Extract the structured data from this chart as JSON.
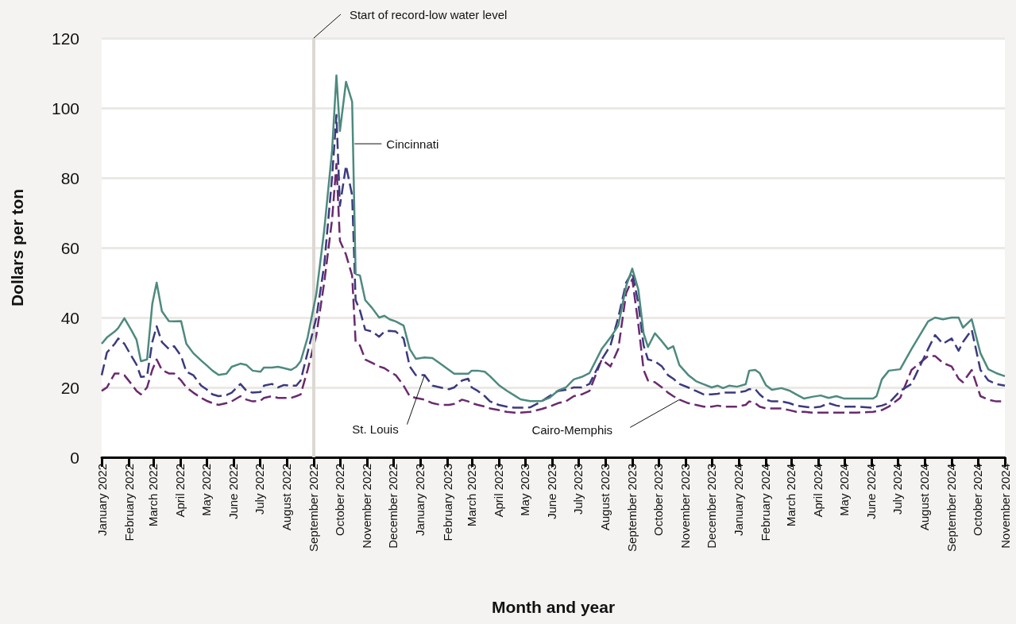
{
  "chart_data": {
    "type": "line",
    "xlabel": "Month and year",
    "ylabel": "Dollars per ton",
    "xlim": [
      "2022-01-01",
      "2024-11-01"
    ],
    "ylim": [
      0,
      120
    ],
    "yticks": [
      0,
      20,
      40,
      60,
      80,
      100,
      120
    ],
    "xticks": [
      {
        "value": "2022-01-01",
        "label": "January 2022"
      },
      {
        "value": "2022-02-01",
        "label": "February 2022"
      },
      {
        "value": "2022-03-01",
        "label": "March 2022"
      },
      {
        "value": "2022-04-01",
        "label": "April 2022"
      },
      {
        "value": "2022-05-01",
        "label": "May 2022"
      },
      {
        "value": "2022-06-01",
        "label": "June 2022"
      },
      {
        "value": "2022-07-01",
        "label": "July 2022"
      },
      {
        "value": "2022-08-01",
        "label": "August 2022"
      },
      {
        "value": "2022-09-01",
        "label": "September 2022"
      },
      {
        "value": "2022-10-01",
        "label": "October 2022"
      },
      {
        "value": "2022-11-01",
        "label": "November 2022"
      },
      {
        "value": "2022-12-01",
        "label": "December 2022"
      },
      {
        "value": "2023-01-01",
        "label": "January 2023"
      },
      {
        "value": "2023-02-01",
        "label": "February 2023"
      },
      {
        "value": "2023-03-01",
        "label": "March 2023"
      },
      {
        "value": "2023-04-01",
        "label": "April 2023"
      },
      {
        "value": "2023-05-01",
        "label": "May 2023"
      },
      {
        "value": "2023-06-01",
        "label": "June 2023"
      },
      {
        "value": "2023-07-01",
        "label": "July 2023"
      },
      {
        "value": "2023-08-01",
        "label": "August 2023"
      },
      {
        "value": "2023-09-01",
        "label": "September 2023"
      },
      {
        "value": "2023-10-01",
        "label": "October 2023"
      },
      {
        "value": "2023-11-01",
        "label": "November 2023"
      },
      {
        "value": "2023-12-01",
        "label": "December 2023"
      },
      {
        "value": "2024-01-01",
        "label": "January 2024"
      },
      {
        "value": "2024-02-01",
        "label": "February 2024"
      },
      {
        "value": "2024-03-01",
        "label": "March 2024"
      },
      {
        "value": "2024-04-01",
        "label": "April 2024"
      },
      {
        "value": "2024-05-01",
        "label": "May 2024"
      },
      {
        "value": "2024-06-01",
        "label": "June 2024"
      },
      {
        "value": "2024-07-01",
        "label": "July 2024"
      },
      {
        "value": "2024-08-01",
        "label": "August 2024"
      },
      {
        "value": "2024-09-01",
        "label": "September 2024"
      },
      {
        "value": "2024-10-01",
        "label": "October 2024"
      },
      {
        "value": "2024-11-01",
        "label": "November 2024"
      }
    ],
    "grid": "y",
    "legend": false,
    "marker": "none",
    "x": [
      "2022-01-01",
      "2022-01-07",
      "2022-01-16",
      "2022-01-20",
      "2022-01-27",
      "2022-02-04",
      "2022-02-10",
      "2022-02-15",
      "2022-02-22",
      "2022-02-28",
      "2022-03-05",
      "2022-03-11",
      "2022-03-19",
      "2022-03-25",
      "2022-04-02",
      "2022-04-08",
      "2022-04-16",
      "2022-04-25",
      "2022-05-01",
      "2022-05-08",
      "2022-05-15",
      "2022-05-24",
      "2022-05-30",
      "2022-06-09",
      "2022-06-16",
      "2022-06-23",
      "2022-07-02",
      "2022-07-06",
      "2022-07-15",
      "2022-07-22",
      "2022-07-29",
      "2022-08-06",
      "2022-08-12",
      "2022-08-17",
      "2022-08-25",
      "2022-09-04",
      "2022-09-13",
      "2022-09-22",
      "2022-09-27",
      "2022-10-01",
      "2022-10-08",
      "2022-10-15",
      "2022-10-19",
      "2022-10-24",
      "2022-10-30",
      "2022-11-07",
      "2022-11-15",
      "2022-11-21",
      "2022-11-27",
      "2022-12-04",
      "2022-12-13",
      "2022-12-20",
      "2022-12-27",
      "2023-01-06",
      "2023-01-15",
      "2023-01-24",
      "2023-02-03",
      "2023-02-09",
      "2023-02-18",
      "2023-02-25",
      "2023-03-01",
      "2023-03-08",
      "2023-03-16",
      "2023-03-22",
      "2023-04-01",
      "2023-04-10",
      "2023-04-19",
      "2023-04-26",
      "2023-05-07",
      "2023-05-20",
      "2023-05-29",
      "2023-06-08",
      "2023-06-17",
      "2023-06-26",
      "2023-07-05",
      "2023-07-14",
      "2023-07-28",
      "2023-08-07",
      "2023-08-16",
      "2023-08-25",
      "2023-09-01",
      "2023-09-08",
      "2023-09-14",
      "2023-09-19",
      "2023-09-27",
      "2023-10-05",
      "2023-10-12",
      "2023-10-18",
      "2023-10-25",
      "2023-11-04",
      "2023-11-13",
      "2023-11-22",
      "2023-12-01",
      "2023-12-08",
      "2023-12-14",
      "2023-12-21",
      "2023-12-30",
      "2024-01-09",
      "2024-01-13",
      "2024-01-20",
      "2024-01-25",
      "2024-02-01",
      "2024-02-08",
      "2024-02-19",
      "2024-02-28",
      "2024-03-07",
      "2024-03-16",
      "2024-03-25",
      "2024-04-04",
      "2024-04-13",
      "2024-04-22",
      "2024-05-01",
      "2024-05-15",
      "2024-06-03",
      "2024-06-07",
      "2024-06-13",
      "2024-06-21",
      "2024-07-04",
      "2024-07-17",
      "2024-08-05",
      "2024-08-13",
      "2024-08-22",
      "2024-09-01",
      "2024-09-09",
      "2024-09-14",
      "2024-09-24",
      "2024-10-04",
      "2024-10-13",
      "2024-10-22",
      "2024-11-01"
    ],
    "series": [
      {
        "name": "Cincinnati",
        "color": "#4e8a7e",
        "line_style": "solid",
        "values": [
          32.5,
          34.3,
          36,
          37,
          39.8,
          36.4,
          33.6,
          27.5,
          28,
          43.9,
          50,
          41.8,
          39,
          38.9,
          39,
          32.5,
          29.8,
          27.7,
          26.4,
          24.8,
          23.6,
          23.9,
          25.9,
          26.8,
          26.4,
          24.8,
          24.5,
          25.7,
          25.7,
          25.9,
          25.5,
          25,
          25.9,
          27.5,
          34.3,
          46.8,
          65,
          87.7,
          109.3,
          93.4,
          107.5,
          101.8,
          52.5,
          52,
          45,
          42.7,
          40,
          40.5,
          39.5,
          38.9,
          37.7,
          31,
          28.2,
          28.6,
          28.4,
          26.8,
          25,
          23.9,
          23.9,
          23.9,
          24.8,
          24.8,
          24.5,
          23.2,
          20.7,
          19.1,
          17.7,
          16.6,
          16.1,
          16.1,
          17,
          19.1,
          20,
          22.3,
          23,
          24.1,
          31,
          34.3,
          37.7,
          49,
          54,
          48,
          35.5,
          31.6,
          35.5,
          33.2,
          31,
          31.8,
          26.4,
          23.6,
          21.8,
          20.9,
          20,
          20.5,
          19.8,
          20.5,
          20.2,
          20.9,
          24.8,
          25,
          24.1,
          20.7,
          19.3,
          19.8,
          19.1,
          18,
          16.8,
          17.3,
          17.7,
          17,
          17.5,
          16.8,
          16.8,
          16.8,
          17.5,
          22.3,
          24.8,
          25.2,
          31,
          38.9,
          40,
          39.5,
          40,
          40,
          37.1,
          39.5,
          29.8,
          25.2,
          24.1,
          23.2
        ]
      },
      {
        "name": "St. Louis",
        "color": "#3b3a7e",
        "line_style": "dashed",
        "values": [
          23.5,
          30,
          32.5,
          34,
          32.5,
          29,
          26.5,
          23,
          23.2,
          33,
          37.5,
          33,
          31,
          31.8,
          29,
          24.5,
          23.5,
          20.5,
          19.5,
          18,
          17.5,
          17.8,
          18.5,
          21,
          19,
          18.5,
          18.7,
          20.5,
          21,
          20,
          20.7,
          20.5,
          20.5,
          22,
          30,
          40,
          55,
          80,
          98,
          72,
          83.5,
          75,
          45,
          42,
          36.5,
          36,
          34.5,
          36,
          36.2,
          36,
          34,
          26,
          23.5,
          23.5,
          20.5,
          20,
          19.5,
          20,
          22,
          22.5,
          20,
          19,
          17.5,
          16,
          15,
          14.5,
          14.2,
          14.2,
          14.3,
          16,
          17.5,
          19,
          19.3,
          20,
          20,
          21,
          28,
          32,
          40,
          50,
          53,
          44,
          32,
          28,
          27.5,
          26,
          23.5,
          22.5,
          21,
          20,
          19,
          18,
          18,
          18.2,
          18.5,
          18.5,
          18.5,
          19,
          19.5,
          19.5,
          18,
          16.5,
          16,
          16,
          15.5,
          14.8,
          14.5,
          14.2,
          14.5,
          15.5,
          14.8,
          14.5,
          14.5,
          14.2,
          14.5,
          14.8,
          15.5,
          19,
          21,
          31,
          35,
          32.5,
          34,
          30.5,
          33,
          36.5,
          25,
          22,
          21,
          20.5
        ]
      },
      {
        "name": "Cairo-Memphis",
        "color": "#6a2a6e",
        "line_style": "dashed",
        "values": [
          19,
          20,
          24,
          24,
          23.5,
          21,
          19,
          18,
          20,
          25,
          28,
          25,
          24,
          24,
          22,
          20,
          18.5,
          17,
          16.2,
          15.5,
          15,
          15.5,
          16,
          17.5,
          16.5,
          16,
          16.2,
          17,
          17.5,
          17,
          17,
          17,
          17.5,
          18,
          25,
          35,
          50,
          68,
          84,
          62,
          58,
          52,
          33,
          32,
          28,
          27,
          26,
          25.5,
          24.5,
          23.5,
          20.5,
          17.5,
          17,
          16.5,
          15.5,
          15,
          15,
          15.3,
          16.5,
          16,
          15.5,
          15,
          14.5,
          14,
          13.5,
          13,
          12.8,
          12.8,
          13,
          13.8,
          14.5,
          15.5,
          16,
          17.5,
          18,
          19,
          28,
          26,
          31,
          47,
          51,
          38,
          25,
          22,
          21.5,
          20,
          18.5,
          17.5,
          16.5,
          15.5,
          15,
          14.5,
          14.5,
          14.8,
          14.5,
          14.5,
          14.5,
          15,
          16,
          15.5,
          14.5,
          14,
          14,
          14,
          13.5,
          13,
          13,
          12.8,
          12.8,
          12.8,
          12.8,
          12.8,
          12.8,
          13,
          13.2,
          13.5,
          14.5,
          17,
          25,
          29,
          29,
          27,
          26,
          22.5,
          21.5,
          25,
          17.5,
          16.5,
          16,
          16
        ]
      }
    ],
    "ref_lines": [
      {
        "axis": "x",
        "value": "2022-09-01",
        "label": "Start of record-low water level",
        "color": "#dcd8d2"
      }
    ]
  }
}
